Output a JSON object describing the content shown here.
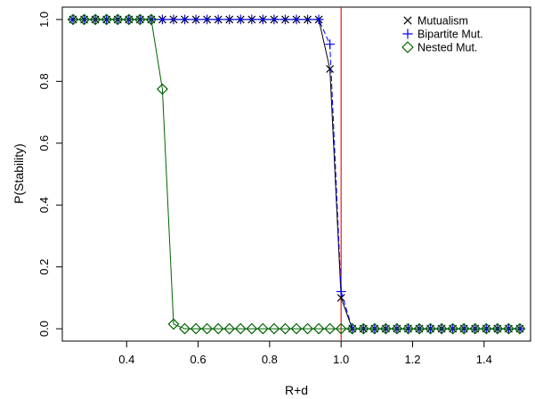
{
  "chart_data": {
    "type": "line",
    "xlabel": "R+d",
    "ylabel": "P(Stability)",
    "xlim": [
      0.22,
      1.53
    ],
    "ylim": [
      -0.04,
      1.04
    ],
    "xticks": [
      "0.4",
      "0.6",
      "0.8",
      "1.0",
      "1.2",
      "1.4"
    ],
    "yticks": [
      "0.0",
      "0.2",
      "0.4",
      "0.6",
      "0.8",
      "1.0"
    ],
    "grid": false,
    "legend_position": "top-right",
    "vline": {
      "x": 1.0,
      "color": "#e41a1c"
    },
    "x": [
      0.25,
      0.28125,
      0.3125,
      0.34375,
      0.375,
      0.40625,
      0.4375,
      0.46875,
      0.5,
      0.53125,
      0.5625,
      0.59375,
      0.625,
      0.65625,
      0.6875,
      0.71875,
      0.75,
      0.78125,
      0.8125,
      0.84375,
      0.875,
      0.90625,
      0.9375,
      0.96875,
      1.0,
      1.03125,
      1.0625,
      1.09375,
      1.125,
      1.15625,
      1.1875,
      1.21875,
      1.25,
      1.28125,
      1.3125,
      1.34375,
      1.375,
      1.40625,
      1.4375,
      1.46875,
      1.5
    ],
    "series": [
      {
        "name": "Mutualism",
        "marker": "cross",
        "color": "#000000",
        "values": [
          1,
          1,
          1,
          1,
          1,
          1,
          1,
          1,
          1,
          1,
          1,
          1,
          1,
          1,
          1,
          1,
          1,
          1,
          1,
          1,
          1,
          1,
          1,
          0.84,
          0.1,
          0,
          0,
          0,
          0,
          0,
          0,
          0,
          0,
          0,
          0,
          0,
          0,
          0,
          0,
          0,
          0
        ]
      },
      {
        "name": "Bipartite Mut.",
        "marker": "plus",
        "color": "#0000ff",
        "values": [
          1,
          1,
          1,
          1,
          1,
          1,
          1,
          1,
          1,
          1,
          1,
          1,
          1,
          1,
          1,
          1,
          1,
          1,
          1,
          1,
          1,
          1,
          1,
          0.92,
          0.12,
          0,
          0,
          0,
          0,
          0,
          0,
          0,
          0,
          0,
          0,
          0,
          0,
          0,
          0,
          0,
          0
        ]
      },
      {
        "name": "Nested Mut.",
        "marker": "diamond",
        "color": "#006400",
        "values": [
          1,
          1,
          1,
          1,
          1,
          1,
          1,
          1,
          0.775,
          0.015,
          0,
          0,
          0,
          0,
          0,
          0,
          0,
          0,
          0,
          0,
          0,
          0,
          0,
          0,
          0,
          0,
          0,
          0,
          0,
          0,
          0,
          0,
          0,
          0,
          0,
          0,
          0,
          0,
          0,
          0,
          0
        ]
      }
    ]
  }
}
